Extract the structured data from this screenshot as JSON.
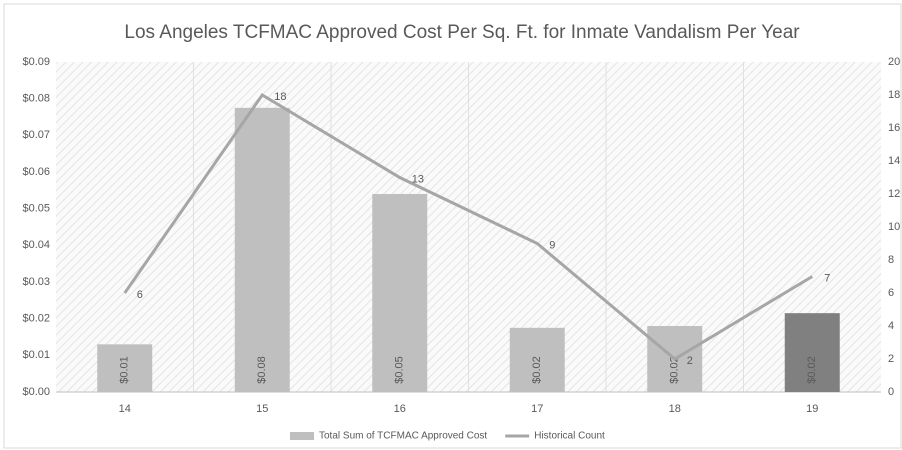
{
  "chart_data": {
    "type": "combo",
    "title": "Los Angeles TCFMAC Approved Cost Per Sq. Ft. for Inmate Vandalism Per Year",
    "categories": [
      "14",
      "15",
      "16",
      "17",
      "18",
      "19"
    ],
    "series": [
      {
        "name": "Total Sum of TCFMAC Approved Cost",
        "type": "bar",
        "color": "#bfbfbf",
        "colors": [
          "#bfbfbf",
          "#bfbfbf",
          "#bfbfbf",
          "#bfbfbf",
          "#bfbfbf",
          "#808080"
        ],
        "values": [
          0.013,
          0.0775,
          0.054,
          0.0175,
          0.018,
          0.0215
        ],
        "value_labels": [
          "$0.01",
          "$0.08",
          "$0.05",
          "$0.02",
          "$0.02",
          "$0.02"
        ]
      },
      {
        "name": "Historical Count",
        "type": "line",
        "axis": "y2",
        "color": "#a6a6a6",
        "values": [
          6,
          18,
          13,
          9,
          2,
          7
        ]
      }
    ],
    "ylim": [
      0,
      0.09
    ],
    "yticks": [
      {
        "value": 0,
        "label": "$0.00"
      },
      {
        "value": 0.01,
        "label": "$0.01"
      },
      {
        "value": 0.02,
        "label": "$0.02"
      },
      {
        "value": 0.03,
        "label": "$0.03"
      },
      {
        "value": 0.04,
        "label": "$0.04"
      },
      {
        "value": 0.05,
        "label": "$0.05"
      },
      {
        "value": 0.06,
        "label": "$0.06"
      },
      {
        "value": 0.07,
        "label": "$0.07"
      },
      {
        "value": 0.08,
        "label": "$0.08"
      },
      {
        "value": 0.09,
        "label": "$0.09"
      }
    ],
    "y2lim": [
      0,
      20
    ],
    "y2ticks": [
      0,
      2,
      4,
      6,
      8,
      10,
      12,
      14,
      16,
      18,
      20
    ],
    "grid": false,
    "legend": "bottom"
  }
}
